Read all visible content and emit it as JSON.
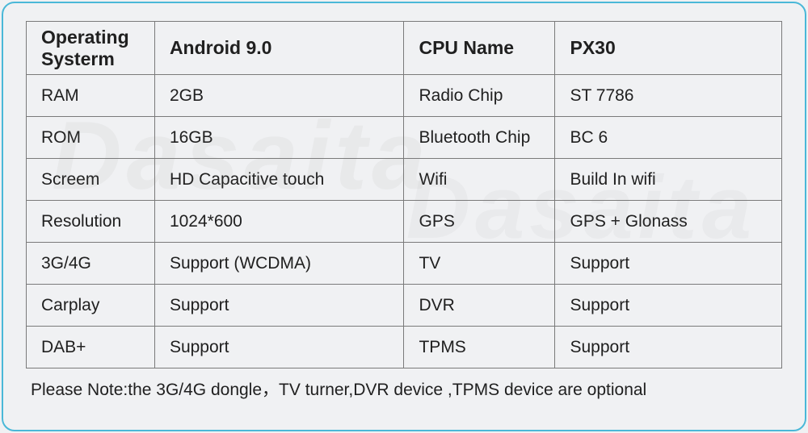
{
  "table": {
    "border_color": "#7a7a7a",
    "outer_border_color": "#4ab8d8",
    "background_color": "#f0f1f3",
    "text_color": "#202020",
    "header_fontsize": 23,
    "cell_fontsize": 21,
    "column_widths_pct": [
      17,
      33,
      20,
      30
    ],
    "rows": [
      {
        "header": true,
        "c1": "Operating Systerm",
        "c2": "Android 9.0",
        "c3": "CPU Name",
        "c4": "PX30"
      },
      {
        "c1": "RAM",
        "c2": "2GB",
        "c3": "Radio Chip",
        "c4": "ST 7786"
      },
      {
        "c1": "ROM",
        "c2": "16GB",
        "c3": "Bluetooth Chip",
        "c4": "BC 6"
      },
      {
        "c1": "Screem",
        "c2": "HD Capacitive touch",
        "c3": "Wifi",
        "c4": "Build In wifi"
      },
      {
        "c1": "Resolution",
        "c2": "1024*600",
        "c3": "GPS",
        "c4": "GPS + Glonass"
      },
      {
        "c1": "3G/4G",
        "c2": "Support (WCDMA)",
        "c3": "TV",
        "c4": "Support"
      },
      {
        "c1": "Carplay",
        "c2": "Support",
        "c3": "DVR",
        "c4": "Support"
      },
      {
        "c1": "DAB+",
        "c2": "Support",
        "c3": "TPMS",
        "c4": "Support"
      }
    ]
  },
  "footnote": "Please Note:the 3G/4G dongle，TV turner,DVR device ,TPMS device are optional",
  "watermark_text": "Dasaita"
}
